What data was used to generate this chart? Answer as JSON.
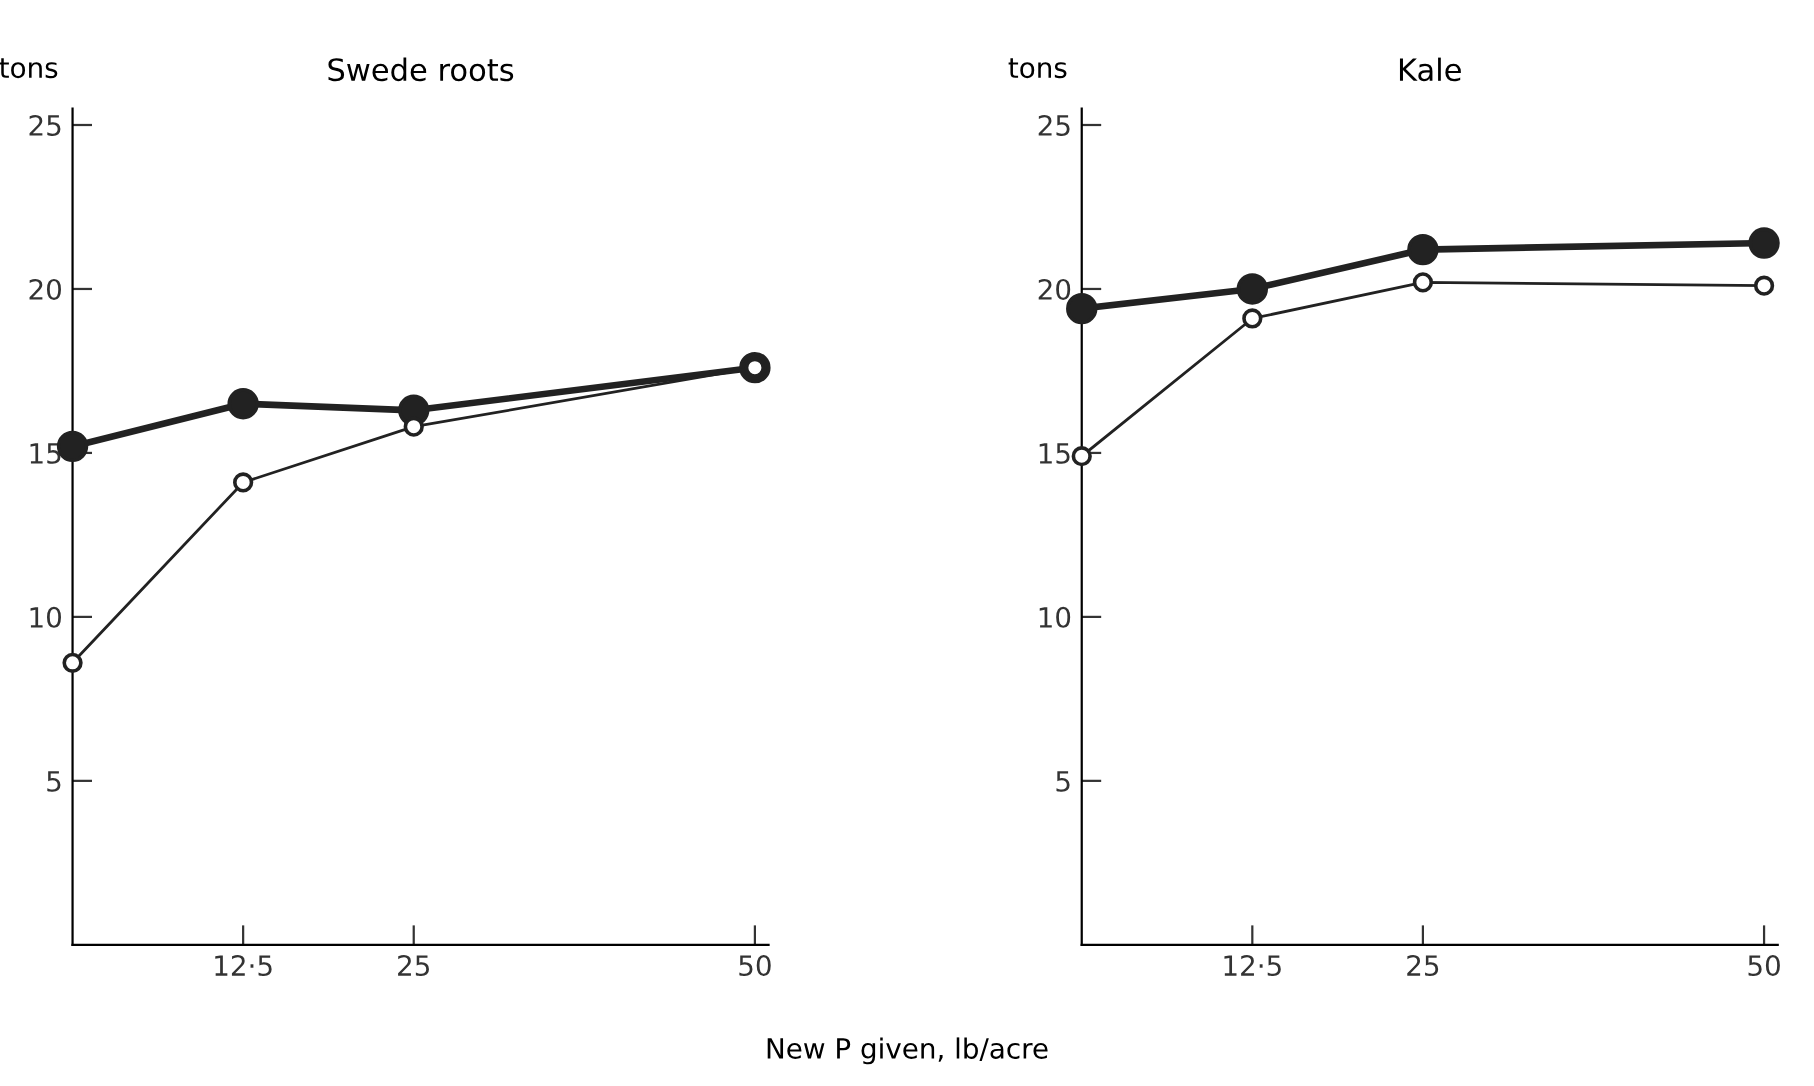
{
  "chart_data": [
    {
      "type": "line",
      "title": "Swede roots",
      "ylabel": "tons",
      "xlabel": "New P given, lb/acre",
      "x": [
        0,
        12.5,
        25,
        50
      ],
      "xlim": [
        0,
        51
      ],
      "ylim": [
        0,
        25.5
      ],
      "xticks": [
        {
          "value": 12.5,
          "label": "12·5"
        },
        25,
        50
      ],
      "yticks": [
        5,
        10,
        15,
        20,
        25
      ],
      "marker": "circle",
      "grid": false,
      "legend": false,
      "series": [
        {
          "color": "#222222",
          "values": [
            15.2,
            16.5,
            16.3,
            17.6
          ]
        },
        {
          "color": "#222222",
          "values": [
            8.6,
            14.1,
            15.8,
            17.6
          ]
        }
      ]
    },
    {
      "type": "line",
      "title": "Kale",
      "ylabel": "tons",
      "x": [
        0,
        12.5,
        25,
        50
      ],
      "xlim": [
        0,
        51
      ],
      "ylim": [
        0,
        25.5
      ],
      "xticks": [
        {
          "value": 12.5,
          "label": "12·5"
        },
        25,
        50
      ],
      "yticks": [
        5,
        10,
        15,
        20,
        25
      ],
      "marker": "circle",
      "grid": false,
      "legend": false,
      "series": [
        {
          "color": "#222222",
          "values": [
            19.4,
            20.0,
            21.2,
            21.4
          ]
        },
        {
          "color": "#222222",
          "values": [
            14.9,
            19.1,
            20.2,
            20.1
          ]
        }
      ]
    }
  ]
}
